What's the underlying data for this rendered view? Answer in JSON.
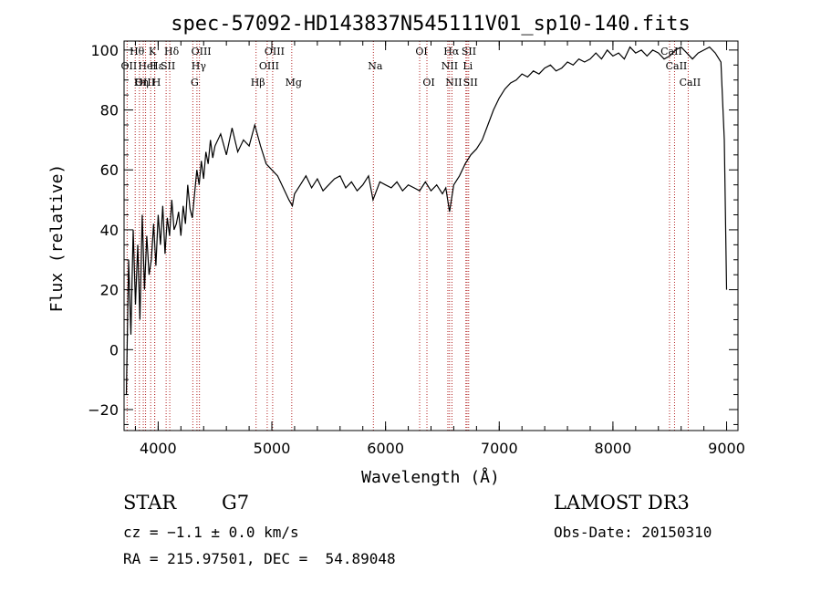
{
  "chart_data": {
    "type": "line",
    "title": "spec-57092-HD143837N545111V01_sp10-140.fits",
    "xlabel": "Wavelength (Å)",
    "ylabel": "Flux (relative)",
    "xlim": [
      3700,
      9100
    ],
    "ylim": [
      -27,
      103
    ],
    "xticks": [
      4000,
      5000,
      6000,
      7000,
      8000,
      9000
    ],
    "yticks": [
      -20,
      0,
      20,
      40,
      60,
      80,
      100
    ],
    "grid": false,
    "line_color": "#000000",
    "marker_color": "#b22222",
    "series": [
      {
        "x": [
          3720,
          3740,
          3760,
          3780,
          3800,
          3820,
          3840,
          3860,
          3880,
          3900,
          3920,
          3940,
          3960,
          3980,
          4000,
          4020,
          4040,
          4060,
          4080,
          4100,
          4120,
          4140,
          4160,
          4180,
          4200,
          4220,
          4240,
          4260,
          4280,
          4300,
          4320,
          4340,
          4360,
          4380,
          4400,
          4420,
          4440,
          4460,
          4480,
          4500,
          4550,
          4600,
          4650,
          4700,
          4750,
          4800,
          4850,
          4900,
          4950,
          5000,
          5050,
          5100,
          5150,
          5180,
          5200,
          5250,
          5300,
          5350,
          5400,
          5450,
          5500,
          5550,
          5600,
          5650,
          5700,
          5750,
          5800,
          5850,
          5890,
          5950,
          6000,
          6050,
          6100,
          6150,
          6200,
          6250,
          6300,
          6350,
          6400,
          6450,
          6500,
          6530,
          6563,
          6600,
          6650,
          6700,
          6750,
          6800,
          6850,
          6900,
          6950,
          7000,
          7050,
          7100,
          7150,
          7200,
          7250,
          7300,
          7350,
          7400,
          7450,
          7500,
          7550,
          7600,
          7650,
          7700,
          7750,
          7800,
          7850,
          7900,
          7950,
          8000,
          8050,
          8100,
          8150,
          8200,
          8250,
          8300,
          8350,
          8400,
          8450,
          8500,
          8550,
          8600,
          8650,
          8700,
          8750,
          8800,
          8850,
          8900,
          8950,
          8980,
          9000
        ],
        "y": [
          -15,
          30,
          5,
          40,
          15,
          35,
          10,
          45,
          20,
          38,
          25,
          30,
          42,
          28,
          45,
          35,
          48,
          32,
          44,
          38,
          50,
          40,
          42,
          46,
          38,
          48,
          42,
          55,
          47,
          44,
          52,
          60,
          55,
          63,
          57,
          66,
          62,
          70,
          64,
          68,
          72,
          65,
          74,
          66,
          70,
          68,
          75,
          68,
          62,
          60,
          58,
          54,
          50,
          48,
          52,
          55,
          58,
          54,
          57,
          53,
          55,
          57,
          58,
          54,
          56,
          53,
          55,
          58,
          50,
          56,
          55,
          54,
          56,
          53,
          55,
          54,
          53,
          56,
          53,
          55,
          52,
          54,
          46,
          55,
          58,
          62,
          65,
          67,
          70,
          75,
          80,
          84,
          87,
          89,
          90,
          92,
          91,
          93,
          92,
          94,
          95,
          93,
          94,
          96,
          95,
          97,
          96,
          97,
          99,
          97,
          100,
          98,
          99,
          97,
          101,
          99,
          100,
          98,
          100,
          99,
          97,
          98,
          100,
          101,
          99,
          97,
          99,
          100,
          101,
          99,
          96,
          70,
          20
        ]
      }
    ],
    "line_markers": [
      {
        "name": "Hθ",
        "x": 3798
      },
      {
        "name": "OII",
        "x": 3727
      },
      {
        "name": "OIII",
        "x": 3869
      },
      {
        "name": "K",
        "x": 3934
      },
      {
        "name": "Hε",
        "x": 3970
      },
      {
        "name": "HeI",
        "x": 3889
      },
      {
        "name": "H",
        "x": 3969
      },
      {
        "name": "Hη",
        "x": 3835
      },
      {
        "name": "SII",
        "x": 4070
      },
      {
        "name": "Hδ",
        "x": 4102
      },
      {
        "name": "OIII",
        "x": 4363
      },
      {
        "name": "Hγ",
        "x": 4341
      },
      {
        "name": "G",
        "x": 4305
      },
      {
        "name": "Hβ",
        "x": 4861
      },
      {
        "name": "OIII",
        "x": 5007
      },
      {
        "name": "OIII",
        "x": 4959
      },
      {
        "name": "Mg",
        "x": 5175
      },
      {
        "name": "Na",
        "x": 5893
      },
      {
        "name": "OI",
        "x": 6300
      },
      {
        "name": "OI",
        "x": 6364
      },
      {
        "name": "Hα",
        "x": 6563
      },
      {
        "name": "NII",
        "x": 6548
      },
      {
        "name": "NII",
        "x": 6584
      },
      {
        "name": "SII",
        "x": 6717
      },
      {
        "name": "Li",
        "x": 6707
      },
      {
        "name": "SII",
        "x": 6731
      },
      {
        "name": "CaII",
        "x": 8498
      },
      {
        "name": "CaII",
        "x": 8542
      },
      {
        "name": "CaII",
        "x": 8662
      }
    ]
  },
  "info": {
    "object_class": "STAR",
    "subclass": "G7",
    "redshift": "cz = −1.1 ± 0.0 km/s",
    "coords": "RA = 215.97501, DEC =  54.89048",
    "survey": "LAMOST DR3",
    "obs_date": "Obs-Date: 20150310"
  }
}
